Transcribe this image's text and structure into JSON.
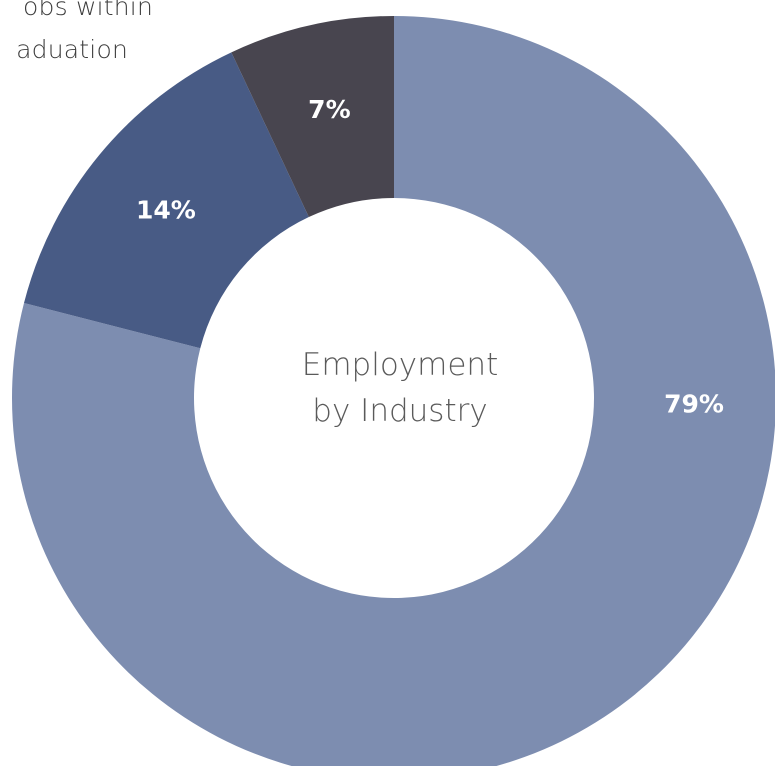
{
  "corner_text": {
    "line1": "obs within",
    "line2": "aduation"
  },
  "chart_data": {
    "type": "pie",
    "donut": true,
    "center_label": [
      "Employment",
      "by Industry"
    ],
    "slices": [
      {
        "value": 79,
        "label": "79%",
        "color": "#7d8db0"
      },
      {
        "value": 14,
        "label": "14%",
        "color": "#485b85"
      },
      {
        "value": 7,
        "label": "7%",
        "color": "#48454f"
      }
    ],
    "start": "12 o'clock",
    "direction": "clockwise"
  }
}
